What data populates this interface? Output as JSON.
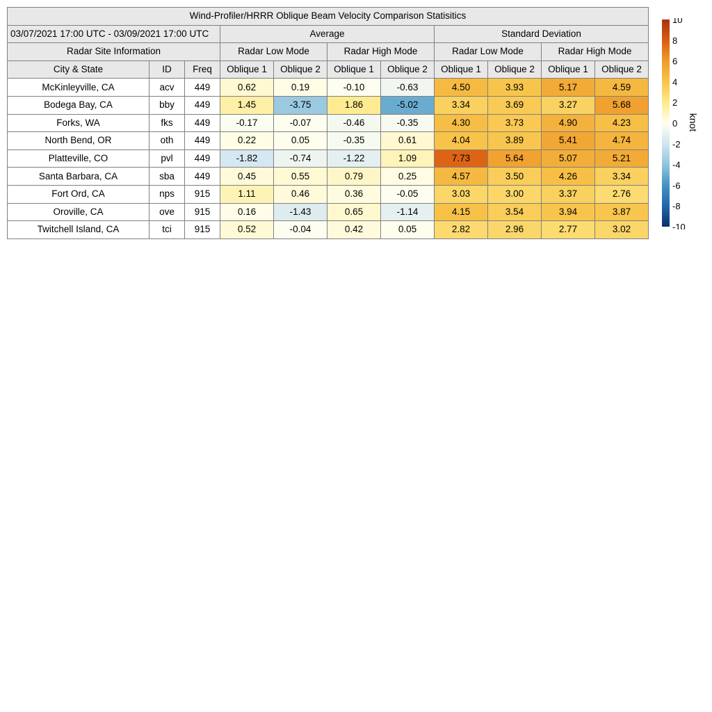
{
  "chart_data": {
    "type": "table",
    "title": "Wind-Profiler/HRRR Oblique Beam Velocity Comparison Statisitics",
    "date_range": "03/07/2021 17:00 UTC - 03/09/2021 17:00 UTC",
    "groups": {
      "average": "Average",
      "std": "Standard Deviation",
      "site_info": "Radar Site Information"
    },
    "modes": [
      "Radar Low Mode",
      "Radar High Mode",
      "Radar Low Mode",
      "Radar High Mode"
    ],
    "columns": [
      "City & State",
      "ID",
      "Freq",
      "Oblique 1",
      "Oblique 2",
      "Oblique 1",
      "Oblique 2",
      "Oblique 1",
      "Oblique 2",
      "Oblique 1",
      "Oblique 2"
    ],
    "rows": [
      {
        "city": "McKinleyville, CA",
        "id": "acv",
        "freq": "449",
        "avg": [
          "0.62",
          "0.19",
          "-0.10",
          "-0.63"
        ],
        "std": [
          "4.50",
          "3.93",
          "5.17",
          "4.59"
        ]
      },
      {
        "city": "Bodega Bay, CA",
        "id": "bby",
        "freq": "449",
        "avg": [
          "1.45",
          "-3.75",
          "1.86",
          "-5.02"
        ],
        "std": [
          "3.34",
          "3.69",
          "3.27",
          "5.68"
        ]
      },
      {
        "city": "Forks, WA",
        "id": "fks",
        "freq": "449",
        "avg": [
          "-0.17",
          "-0.07",
          "-0.46",
          "-0.35"
        ],
        "std": [
          "4.30",
          "3.73",
          "4.90",
          "4.23"
        ]
      },
      {
        "city": "North Bend, OR",
        "id": "oth",
        "freq": "449",
        "avg": [
          "0.22",
          "0.05",
          "-0.35",
          "0.61"
        ],
        "std": [
          "4.04",
          "3.89",
          "5.41",
          "4.74"
        ]
      },
      {
        "city": "Platteville, CO",
        "id": "pvl",
        "freq": "449",
        "avg": [
          "-1.82",
          "-0.74",
          "-1.22",
          "1.09"
        ],
        "std": [
          "7.73",
          "5.64",
          "5.07",
          "5.21"
        ]
      },
      {
        "city": "Santa Barbara, CA",
        "id": "sba",
        "freq": "449",
        "avg": [
          "0.45",
          "0.55",
          "0.79",
          "0.25"
        ],
        "std": [
          "4.57",
          "3.50",
          "4.26",
          "3.34"
        ]
      },
      {
        "city": "Fort Ord, CA",
        "id": "nps",
        "freq": "915",
        "avg": [
          "1.11",
          "0.46",
          "0.36",
          "-0.05"
        ],
        "std": [
          "3.03",
          "3.00",
          "3.37",
          "2.76"
        ]
      },
      {
        "city": "Oroville, CA",
        "id": "ove",
        "freq": "915",
        "avg": [
          "0.16",
          "-1.43",
          "0.65",
          "-1.14"
        ],
        "std": [
          "4.15",
          "3.54",
          "3.94",
          "3.87"
        ]
      },
      {
        "city": "Twitchell Island, CA",
        "id": "tci",
        "freq": "915",
        "avg": [
          "0.52",
          "-0.04",
          "0.42",
          "0.05"
        ],
        "std": [
          "2.82",
          "2.96",
          "2.77",
          "3.02"
        ]
      }
    ],
    "colorbar": {
      "label": "knot",
      "ticks": [
        "10",
        "8",
        "6",
        "4",
        "2",
        "0",
        "-2",
        "-4",
        "-6",
        "-8",
        "-10"
      ],
      "range": [
        -10,
        10
      ],
      "colors": [
        "#08306b",
        "#2166ac",
        "#4393c3",
        "#92c5de",
        "#d1e5f0",
        "#fffff0",
        "#fee98a",
        "#f8c44a",
        "#ef9a2a",
        "#d95c10",
        "#a83410"
      ]
    }
  }
}
